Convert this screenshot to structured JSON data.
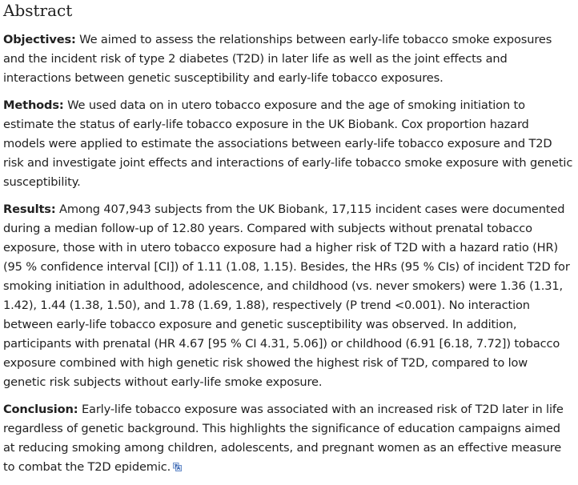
{
  "abstract": {
    "title": "Abstract",
    "sections": [
      {
        "label": "Objectives:",
        "text": "We aimed to assess the relationships between early-life tobacco smoke exposures and the incident risk of type 2 diabetes (T2D) in later life as well as the joint effects and interactions between genetic susceptibility and early-life tobacco exposures."
      },
      {
        "label": "Methods:",
        "text": "We used data on in utero tobacco exposure and the age of smoking initiation to estimate the status of early-life tobacco exposure in the UK Biobank. Cox proportion hazard models were applied to estimate the associations between early-life tobacco exposure and T2D risk and investigate joint effects and interactions of early-life tobacco smoke exposure with genetic susceptibility."
      },
      {
        "label": "Results:",
        "text": "Among 407,943 subjects from the UK Biobank, 17,115 incident cases were documented during a median follow-up of 12.80 years. Compared with subjects without prenatal tobacco exposure, those with in utero tobacco exposure had a higher risk of T2D with a hazard ratio (HR) (95 % confidence interval [CI]) of 1.11 (1.08, 1.15). Besides, the HRs (95 % CIs) of incident T2D for smoking initiation in adulthood, adolescence, and childhood (vs. never smokers) were 1.36 (1.31, 1.42), 1.44 (1.38, 1.50), and 1.78 (1.69, 1.88), respectively (P trend <0.001). No interaction between early-life tobacco exposure and genetic susceptibility was observed. In addition, participants with prenatal (HR 4.67 [95 % CI 4.31, 5.06]) or childhood (6.91 [6.18, 7.72]) tobacco exposure combined with high genetic risk showed the highest risk of T2D, compared to low genetic risk subjects without early-life smoke exposure."
      },
      {
        "label": "Conclusion:",
        "text": "Early-life tobacco exposure was associated with an increased risk of T2D later in life regardless of genetic background. This highlights the significance of education campaigns aimed at reducing smoking among children, adolescents, and pregnant women as an effective measure to combat the T2D epidemic."
      }
    ],
    "translate_icon": "translate-icon"
  }
}
